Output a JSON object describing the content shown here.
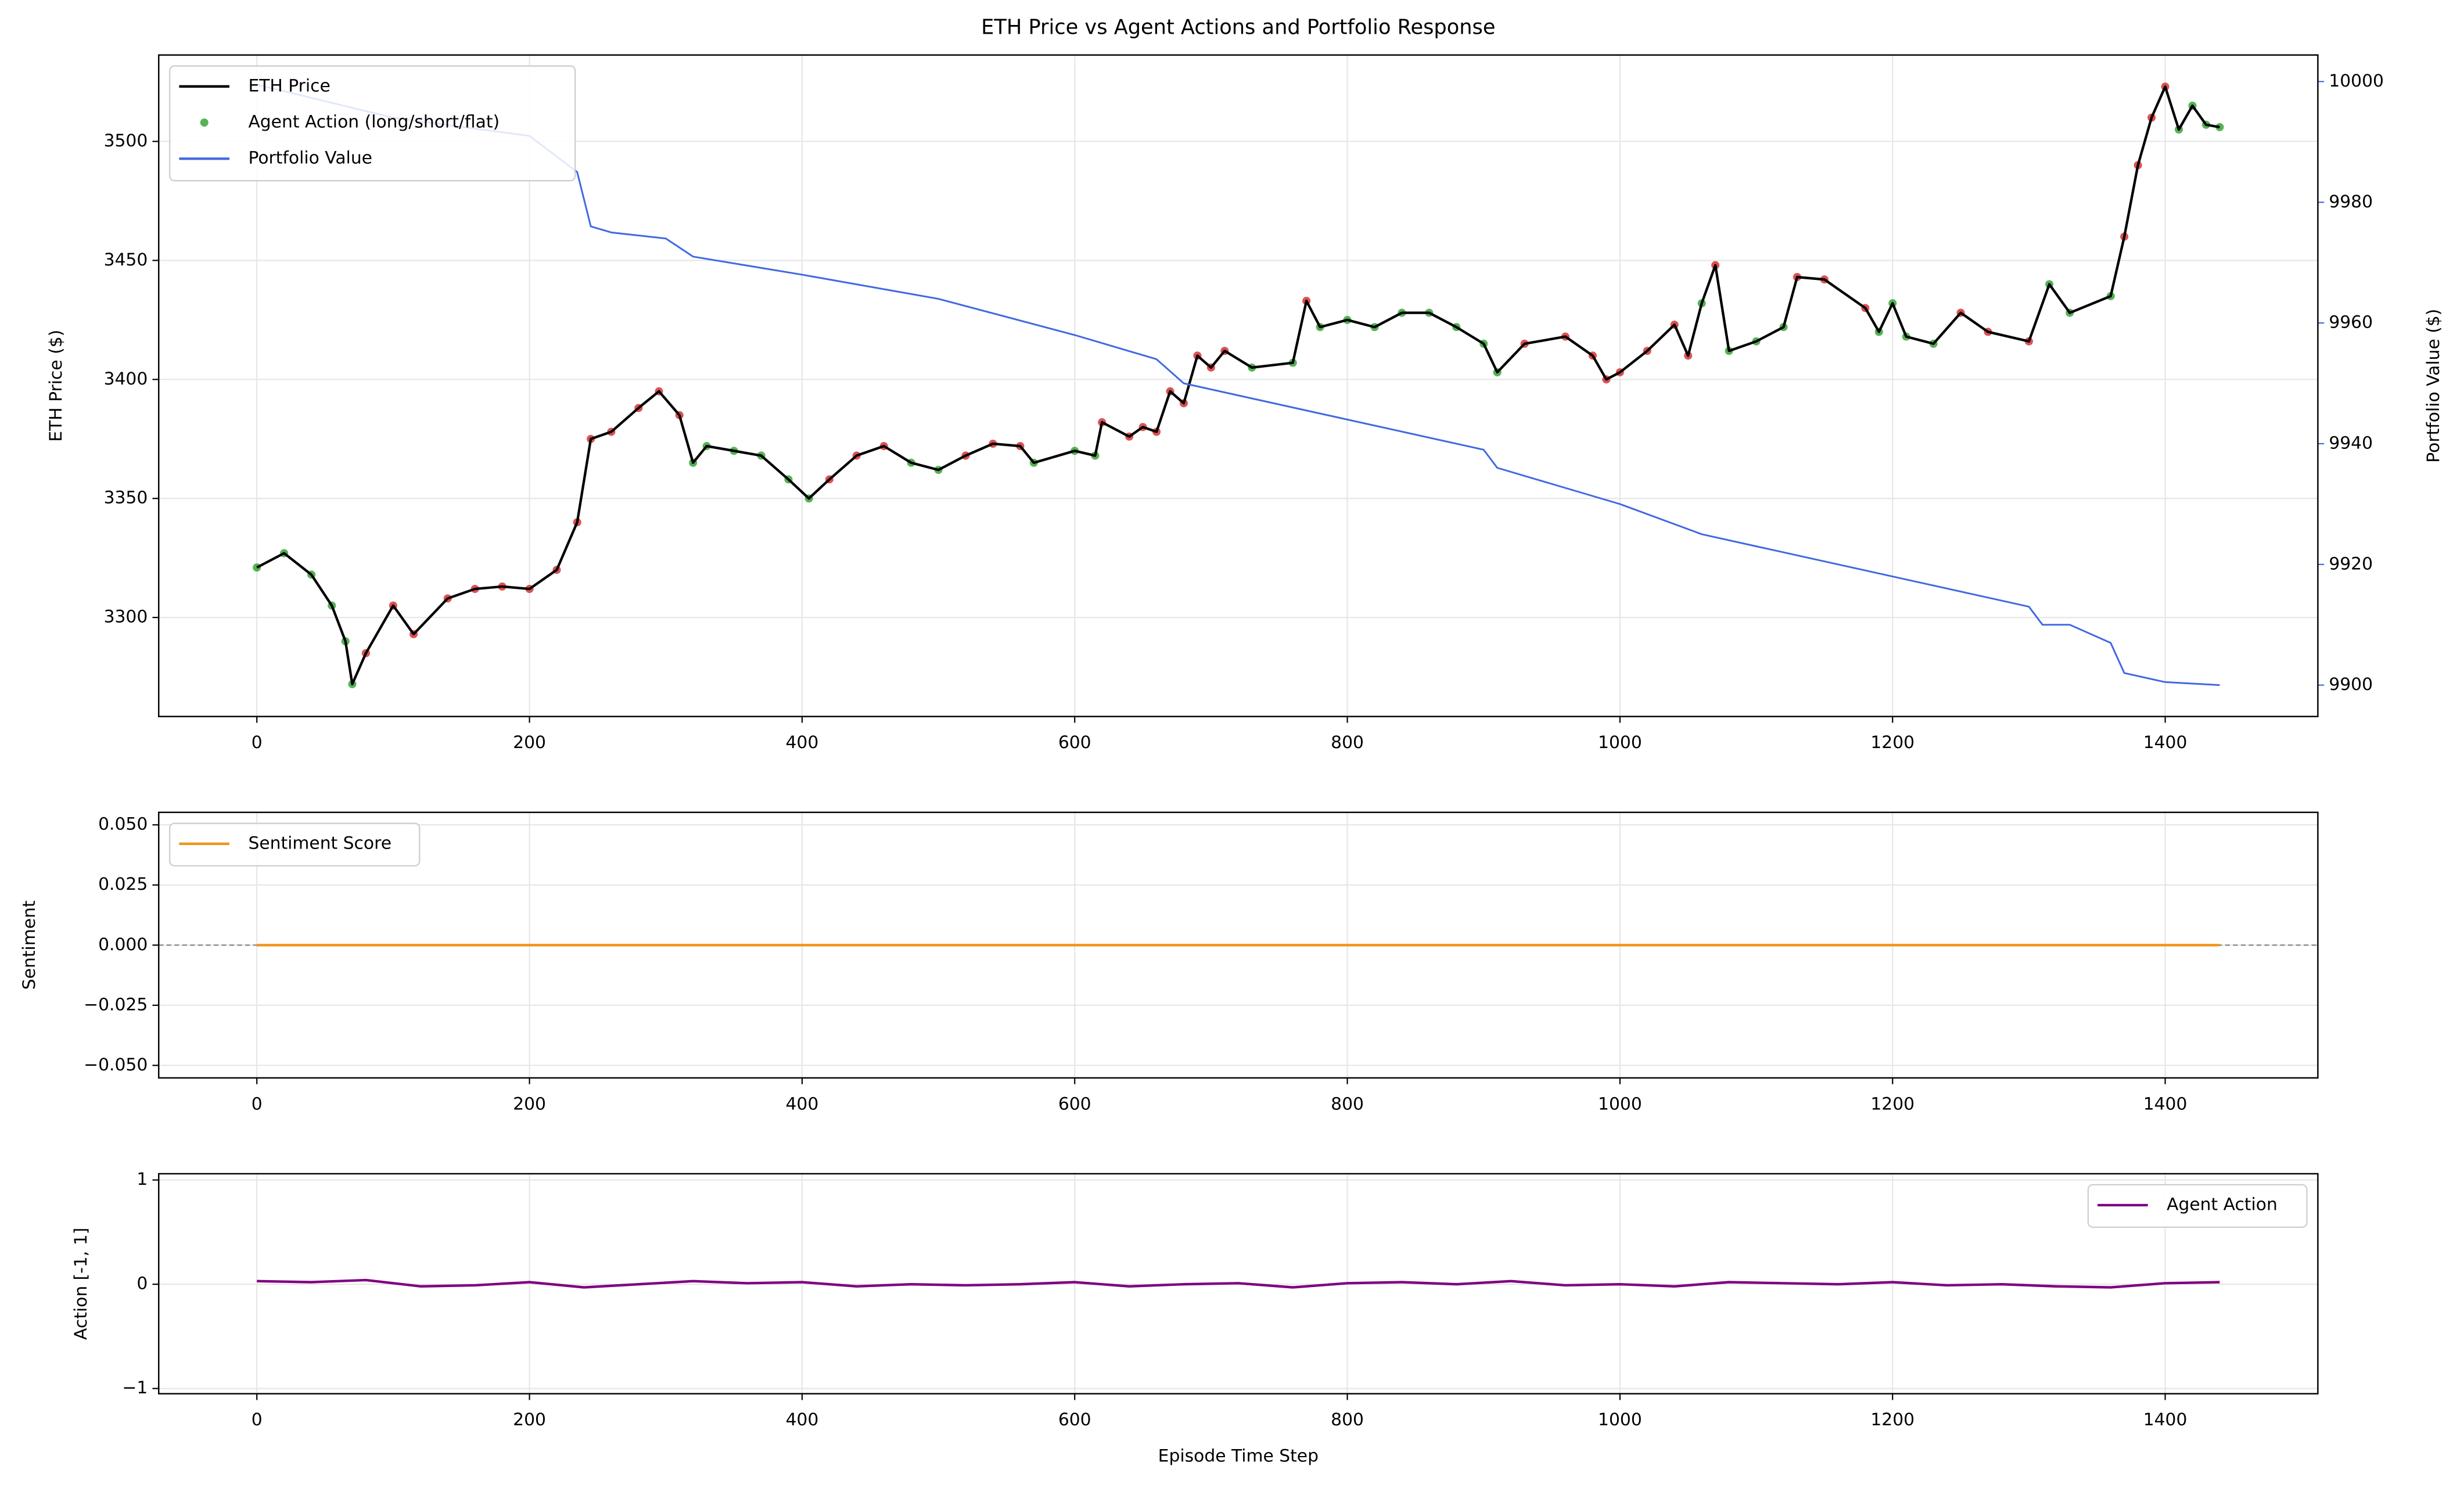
{
  "chart_data": [
    {
      "type": "line",
      "title": "ETH Price vs Agent Actions and Portfolio Response",
      "y_label": "ETH Price ($)",
      "y2_label": "Portfolio Value ($)",
      "xlim": [
        -72,
        1512
      ],
      "xticks": [
        0,
        200,
        400,
        600,
        800,
        1000,
        1200,
        1400
      ],
      "ylim": [
        3258.4,
        3536.3
      ],
      "yticks": [
        3300,
        3350,
        3400,
        3450,
        3500
      ],
      "y2lim": [
        9894.8,
        10004.4
      ],
      "y2ticks": [
        9900,
        9920,
        9940,
        9960,
        9980,
        10000
      ],
      "grid": true,
      "legend": "upper left",
      "series": [
        {
          "name": "ETH Price",
          "color": "#000000",
          "x": [
            0,
            20,
            40,
            55,
            65,
            70,
            80,
            100,
            115,
            140,
            160,
            180,
            200,
            220,
            235,
            245,
            260,
            280,
            295,
            310,
            320,
            330,
            350,
            370,
            390,
            405,
            420,
            440,
            460,
            480,
            500,
            520,
            540,
            560,
            570,
            600,
            615,
            620,
            640,
            650,
            660,
            670,
            680,
            690,
            700,
            710,
            730,
            760,
            770,
            780,
            800,
            820,
            840,
            860,
            880,
            900,
            910,
            930,
            960,
            980,
            990,
            1000,
            1020,
            1040,
            1050,
            1060,
            1070,
            1080,
            1100,
            1120,
            1130,
            1150,
            1180,
            1190,
            1200,
            1210,
            1230,
            1250,
            1270,
            1300,
            1315,
            1330,
            1360,
            1370,
            1380,
            1390,
            1400,
            1410,
            1420,
            1430,
            1440
          ],
          "values": [
            3321,
            3327,
            3318,
            3305,
            3290,
            3272,
            3285,
            3305,
            3293,
            3308,
            3312,
            3313,
            3312,
            3320,
            3340,
            3375,
            3378,
            3388,
            3395,
            3385,
            3365,
            3372,
            3370,
            3368,
            3358,
            3350,
            3358,
            3368,
            3372,
            3365,
            3362,
            3368,
            3373,
            3372,
            3365,
            3370,
            3368,
            3382,
            3376,
            3380,
            3378,
            3395,
            3390,
            3410,
            3405,
            3412,
            3405,
            3407,
            3433,
            3422,
            3425,
            3422,
            3428,
            3428,
            3422,
            3415,
            3403,
            3415,
            3418,
            3410,
            3400,
            3403,
            3412,
            3423,
            3410,
            3432,
            3448,
            3412,
            3416,
            3422,
            3443,
            3442,
            3430,
            3420,
            3432,
            3418,
            3415,
            3428,
            3420,
            3416,
            3440,
            3428,
            3435,
            3460,
            3490,
            3510,
            3523,
            3505,
            3515,
            3507,
            3506
          ]
        },
        {
          "name": "Agent Action (long/short/flat)",
          "type": "scatter",
          "on": 0,
          "color": "#2ca02c",
          "point_colors": [
            "#2ca02c",
            "#2ca02c",
            "#2ca02c",
            "#2ca02c",
            "#2ca02c",
            "#2ca02c",
            "#d62728",
            "#d62728",
            "#d62728",
            "#d62728",
            "#d62728",
            "#d62728",
            "#d62728",
            "#d62728",
            "#d62728",
            "#d62728",
            "#d62728",
            "#d62728",
            "#d62728",
            "#d62728",
            "#2ca02c",
            "#2ca02c",
            "#2ca02c",
            "#2ca02c",
            "#2ca02c",
            "#2ca02c",
            "#d62728",
            "#d62728",
            "#d62728",
            "#2ca02c",
            "#2ca02c",
            "#d62728",
            "#d62728",
            "#d62728",
            "#2ca02c",
            "#2ca02c",
            "#2ca02c",
            "#d62728",
            "#d62728",
            "#d62728",
            "#d62728",
            "#d62728",
            "#d62728",
            "#d62728",
            "#d62728",
            "#d62728",
            "#2ca02c",
            "#2ca02c",
            "#d62728",
            "#2ca02c",
            "#2ca02c",
            "#2ca02c",
            "#2ca02c",
            "#2ca02c",
            "#2ca02c",
            "#2ca02c",
            "#2ca02c",
            "#d62728",
            "#d62728",
            "#d62728",
            "#d62728",
            "#d62728",
            "#d62728",
            "#d62728",
            "#d62728",
            "#2ca02c",
            "#d62728",
            "#2ca02c",
            "#2ca02c",
            "#2ca02c",
            "#d62728",
            "#d62728",
            "#d62728",
            "#2ca02c",
            "#2ca02c",
            "#2ca02c",
            "#2ca02c",
            "#d62728",
            "#d62728",
            "#d62728",
            "#2ca02c",
            "#2ca02c",
            "#2ca02c",
            "#d62728",
            "#d62728",
            "#d62728",
            "#d62728",
            "#2ca02c",
            "#2ca02c",
            "#2ca02c",
            "#2ca02c"
          ]
        },
        {
          "name": "Portfolio Value",
          "color": "#4169e1",
          "axis": "y2",
          "x": [
            0,
            100,
            200,
            235,
            245,
            260,
            300,
            320,
            400,
            500,
            600,
            660,
            680,
            800,
            900,
            910,
            1000,
            1060,
            1100,
            1200,
            1300,
            1310,
            1330,
            1360,
            1370,
            1400,
            1440
          ],
          "values": [
            9999.5,
            9994,
            9991,
            9985,
            9976,
            9975,
            9974,
            9971,
            9968,
            9964,
            9958,
            9954,
            9950,
            9944,
            9939,
            9936,
            9930,
            9925,
            9923,
            9918,
            9913,
            9910,
            9910,
            9907,
            9902,
            9900.5,
            9900
          ]
        }
      ]
    },
    {
      "type": "line",
      "y_label": "Sentiment",
      "xlim": [
        -72,
        1512
      ],
      "xticks": [
        0,
        200,
        400,
        600,
        800,
        1000,
        1200,
        1400
      ],
      "ylim": [
        -0.0552,
        0.0552
      ],
      "yticks": [
        {
          "value": -0.05,
          "label": "−0.050"
        },
        {
          "value": -0.025,
          "label": "−0.025"
        },
        {
          "value": 0,
          "label": "0.000"
        },
        {
          "value": 0.025,
          "label": "0.025"
        },
        {
          "value": 0.05,
          "label": "0.050"
        }
      ],
      "zero_line": true,
      "grid": true,
      "legend": "upper left",
      "series": [
        {
          "name": "Sentiment Score",
          "color": "#f0951e",
          "x": [
            0,
            1440
          ],
          "values": [
            0,
            0
          ]
        }
      ]
    },
    {
      "type": "line",
      "y_label": "Action [-1, 1]",
      "x_label": "Episode Time Step",
      "xlim": [
        -72,
        1512
      ],
      "xticks": [
        0,
        200,
        400,
        600,
        800,
        1000,
        1200,
        1400
      ],
      "ylim": [
        -1.05,
        1.06
      ],
      "yticks": [
        {
          "value": -1,
          "label": "−1"
        },
        0,
        1
      ],
      "grid": true,
      "legend": "upper right",
      "series": [
        {
          "name": "Agent Action",
          "color": "#800080",
          "x": [
            0,
            40,
            80,
            120,
            160,
            200,
            240,
            280,
            320,
            360,
            400,
            440,
            480,
            520,
            560,
            600,
            640,
            680,
            720,
            760,
            800,
            840,
            880,
            920,
            960,
            1000,
            1040,
            1080,
            1120,
            1160,
            1200,
            1240,
            1280,
            1320,
            1360,
            1400,
            1440
          ],
          "values": [
            0.03,
            0.02,
            0.04,
            -0.02,
            -0.01,
            0.02,
            -0.03,
            0.0,
            0.03,
            0.01,
            0.02,
            -0.02,
            0.0,
            -0.01,
            0.0,
            0.02,
            -0.02,
            0.0,
            0.01,
            -0.03,
            0.01,
            0.02,
            0.0,
            0.03,
            -0.01,
            0.0,
            -0.02,
            0.02,
            0.01,
            0.0,
            0.02,
            -0.01,
            0.0,
            -0.02,
            -0.03,
            0.01,
            0.02
          ]
        }
      ]
    }
  ]
}
